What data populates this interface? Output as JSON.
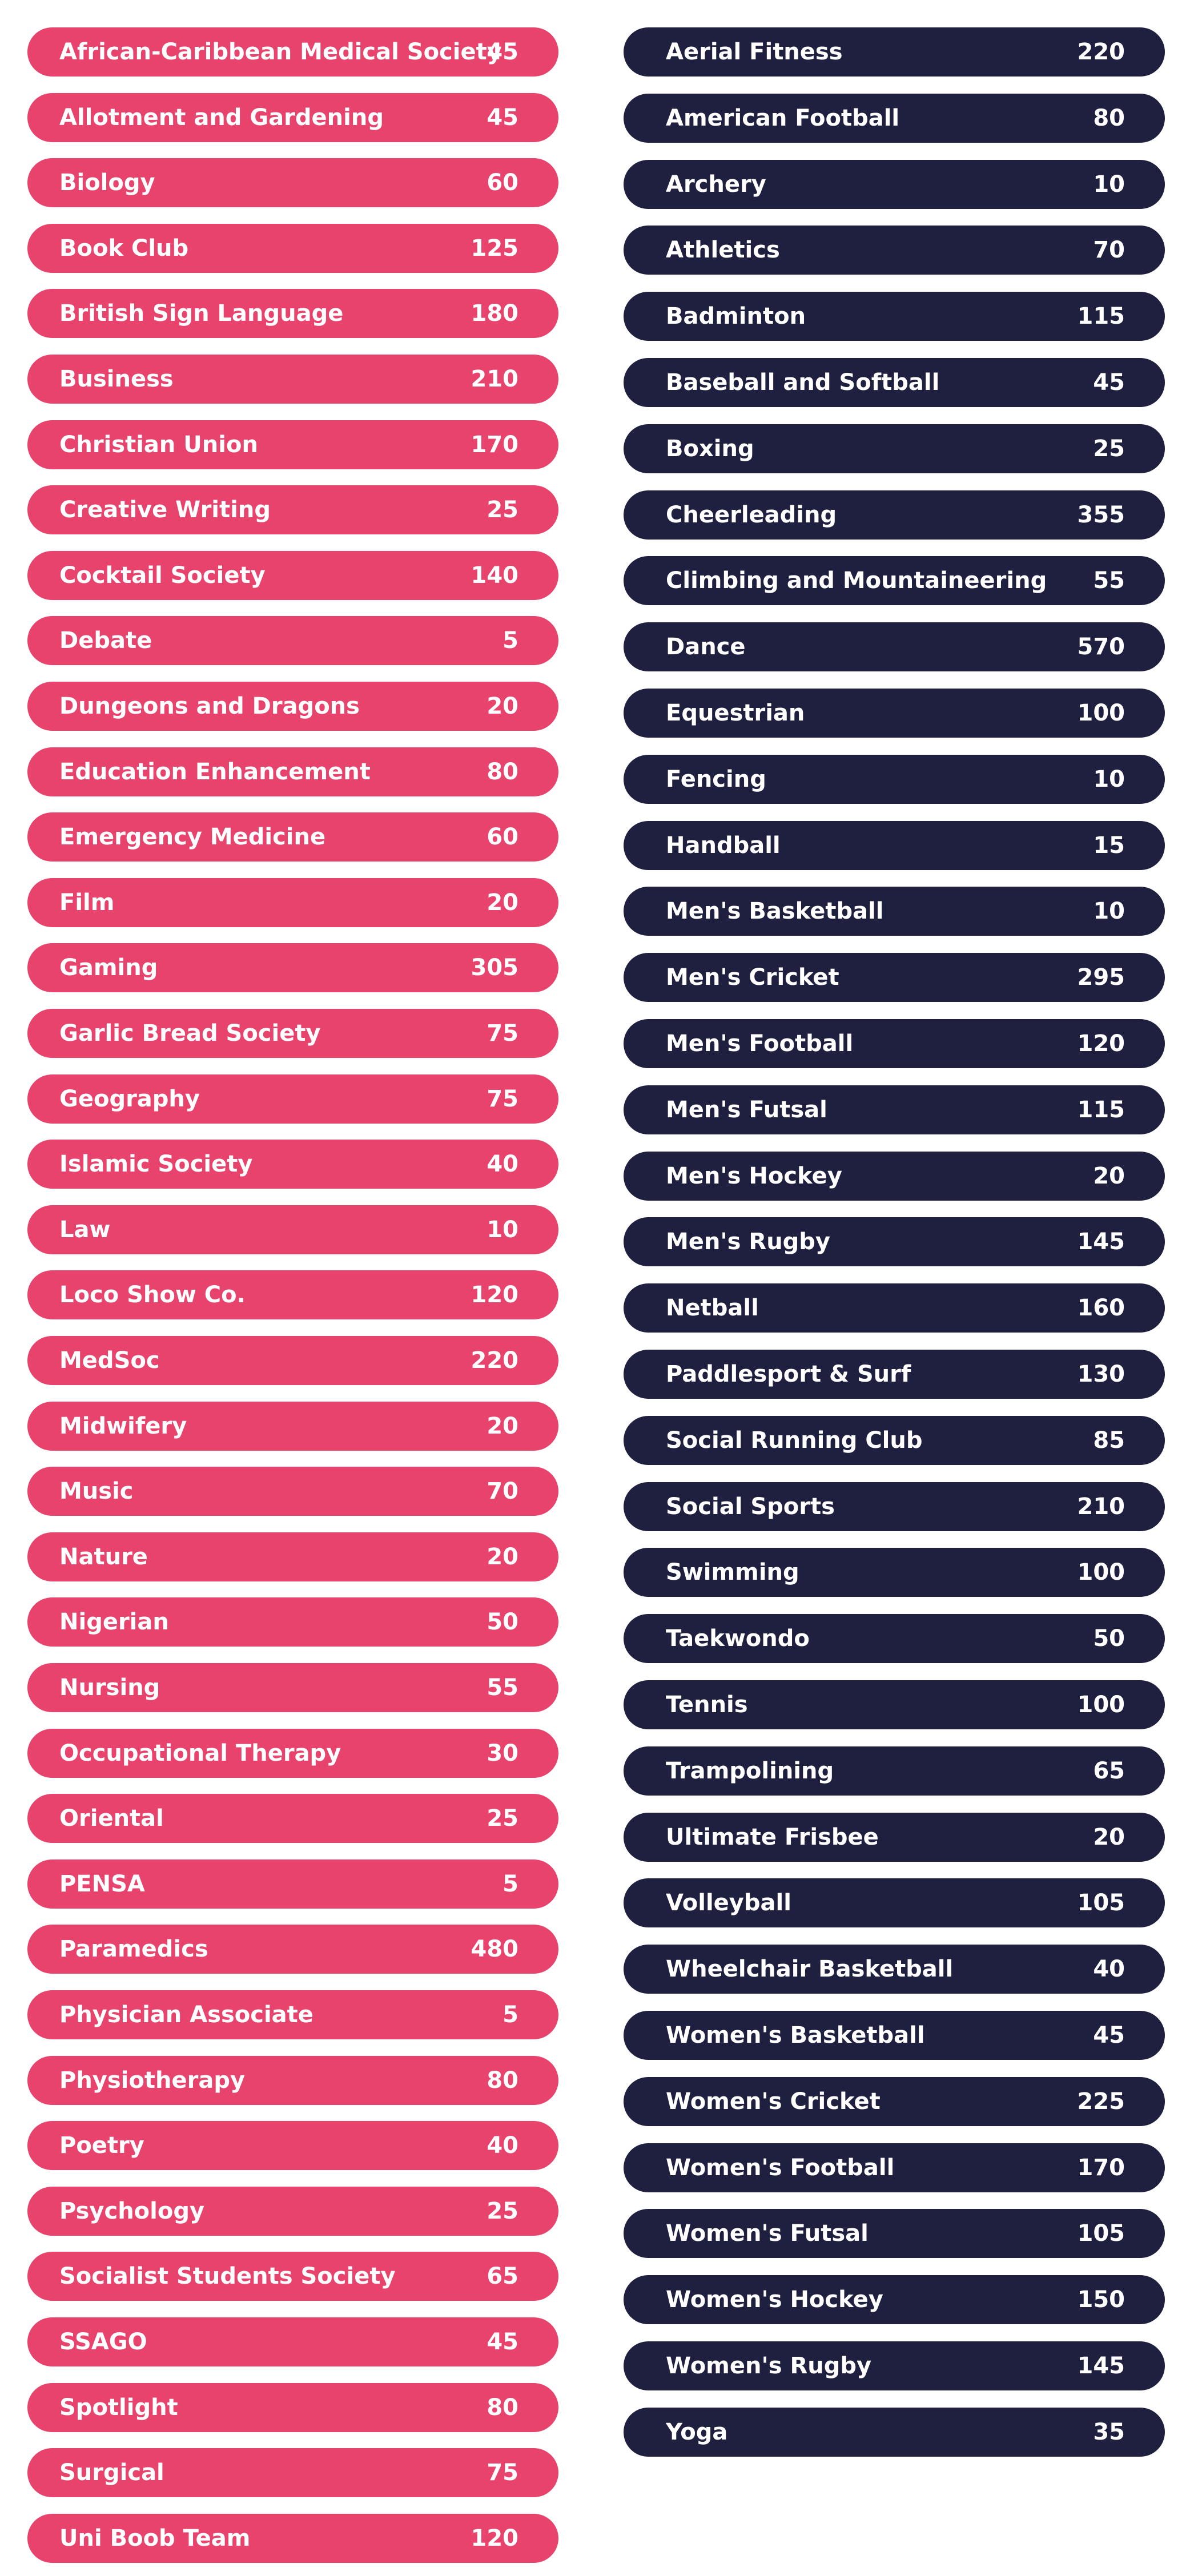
{
  "societies": [
    {
      "name": "African-Caribbean Medical Society",
      "count": "45"
    },
    {
      "name": "Allotment and Gardening",
      "count": "45"
    },
    {
      "name": "Biology",
      "count": "60"
    },
    {
      "name": "Book Club",
      "count": "125"
    },
    {
      "name": "British Sign Language",
      "count": "180"
    },
    {
      "name": "Business",
      "count": "210"
    },
    {
      "name": "Christian Union",
      "count": "170"
    },
    {
      "name": "Creative Writing",
      "count": "25"
    },
    {
      "name": "Cocktail Society",
      "count": "140"
    },
    {
      "name": "Debate",
      "count": "5"
    },
    {
      "name": "Dungeons and Dragons",
      "count": "20"
    },
    {
      "name": "Education Enhancement",
      "count": "80"
    },
    {
      "name": "Emergency Medicine",
      "count": "60"
    },
    {
      "name": "Film",
      "count": "20"
    },
    {
      "name": "Gaming",
      "count": "305"
    },
    {
      "name": "Garlic Bread Society",
      "count": "75"
    },
    {
      "name": "Geography",
      "count": "75"
    },
    {
      "name": "Islamic Society",
      "count": "40"
    },
    {
      "name": "Law",
      "count": "10"
    },
    {
      "name": "Loco Show Co.",
      "count": "120"
    },
    {
      "name": "MedSoc",
      "count": "220"
    },
    {
      "name": "Midwifery",
      "count": "20"
    },
    {
      "name": "Music",
      "count": "70"
    },
    {
      "name": "Nature",
      "count": "20"
    },
    {
      "name": "Nigerian",
      "count": "50"
    },
    {
      "name": "Nursing",
      "count": "55"
    },
    {
      "name": "Occupational Therapy",
      "count": "30"
    },
    {
      "name": "Oriental",
      "count": "25"
    },
    {
      "name": "PENSA",
      "count": "5"
    },
    {
      "name": "Paramedics",
      "count": "480"
    },
    {
      "name": "Physician Associate",
      "count": "5"
    },
    {
      "name": "Physiotherapy",
      "count": "80"
    },
    {
      "name": "Poetry",
      "count": "40"
    },
    {
      "name": "Psychology",
      "count": "25"
    },
    {
      "name": "Socialist Students Society",
      "count": "65"
    },
    {
      "name": "SSAGO",
      "count": "45"
    },
    {
      "name": "Spotlight",
      "count": "80"
    },
    {
      "name": "Surgical",
      "count": "75"
    },
    {
      "name": "Uni Boob Team",
      "count": "120"
    }
  ],
  "sports": [
    {
      "name": "Aerial Fitness",
      "count": "220"
    },
    {
      "name": "American Football",
      "count": "80"
    },
    {
      "name": "Archery",
      "count": "10"
    },
    {
      "name": "Athletics",
      "count": "70"
    },
    {
      "name": "Badminton",
      "count": "115"
    },
    {
      "name": "Baseball and Softball",
      "count": "45"
    },
    {
      "name": "Boxing",
      "count": "25"
    },
    {
      "name": "Cheerleading",
      "count": "355"
    },
    {
      "name": "Climbing and Mountaineering",
      "count": "55"
    },
    {
      "name": "Dance",
      "count": "570"
    },
    {
      "name": "Equestrian",
      "count": "100"
    },
    {
      "name": "Fencing",
      "count": "10"
    },
    {
      "name": "Handball",
      "count": "15"
    },
    {
      "name": "Men's Basketball",
      "count": "10"
    },
    {
      "name": "Men's Cricket",
      "count": "295"
    },
    {
      "name": "Men's Football",
      "count": "120"
    },
    {
      "name": "Men's Futsal",
      "count": "115"
    },
    {
      "name": "Men's Hockey",
      "count": "20"
    },
    {
      "name": "Men's Rugby",
      "count": "145"
    },
    {
      "name": "Netball",
      "count": "160"
    },
    {
      "name": "Paddlesport & Surf",
      "count": "130"
    },
    {
      "name": "Social Running Club",
      "count": "85"
    },
    {
      "name": "Social Sports",
      "count": "210"
    },
    {
      "name": "Swimming",
      "count": "100"
    },
    {
      "name": "Taekwondo",
      "count": "50"
    },
    {
      "name": "Tennis",
      "count": "100"
    },
    {
      "name": "Trampolining",
      "count": "65"
    },
    {
      "name": "Ultimate Frisbee",
      "count": "20"
    },
    {
      "name": "Volleyball",
      "count": "105"
    },
    {
      "name": "Wheelchair Basketball",
      "count": "40"
    },
    {
      "name": "Women's Basketball",
      "count": "45"
    },
    {
      "name": "Women's Cricket",
      "count": "225"
    },
    {
      "name": "Women's Football",
      "count": "170"
    },
    {
      "name": "Women's Futsal",
      "count": "105"
    },
    {
      "name": "Women's Hockey",
      "count": "150"
    },
    {
      "name": "Women's Rugby",
      "count": "145"
    },
    {
      "name": "Yoga",
      "count": "35"
    }
  ],
  "colors": {
    "societies_pill": "#e8436d",
    "sports_pill": "#1f1f3f",
    "text": "#ffffff"
  }
}
